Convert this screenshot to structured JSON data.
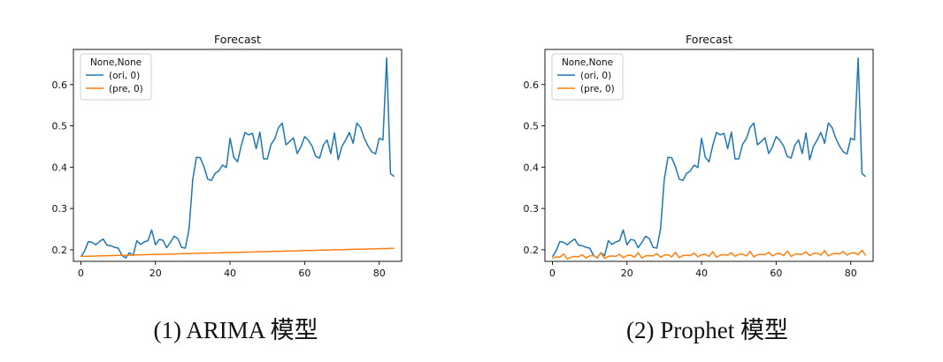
{
  "chart_data": [
    {
      "type": "line",
      "title": "Forecast",
      "xlabel": "",
      "ylabel": "",
      "xlim": [
        -2,
        86
      ],
      "ylim": [
        0.172,
        0.685
      ],
      "xticks": [
        0,
        20,
        40,
        60,
        80
      ],
      "yticks": [
        0.2,
        0.3,
        0.4,
        0.5,
        0.6
      ],
      "grid": false,
      "legend": {
        "title": "None,None",
        "placement": "top-left"
      },
      "series": [
        {
          "name": "(ori, 0)",
          "color": "#1f77b4",
          "values": [
            0.183,
            0.197,
            0.22,
            0.218,
            0.212,
            0.22,
            0.226,
            0.211,
            0.21,
            0.206,
            0.204,
            0.187,
            0.18,
            0.193,
            0.186,
            0.222,
            0.213,
            0.219,
            0.222,
            0.248,
            0.212,
            0.225,
            0.223,
            0.205,
            0.218,
            0.233,
            0.227,
            0.206,
            0.204,
            0.25,
            0.37,
            0.424,
            0.423,
            0.401,
            0.371,
            0.368,
            0.385,
            0.391,
            0.405,
            0.399,
            0.47,
            0.424,
            0.413,
            0.452,
            0.484,
            0.478,
            0.482,
            0.445,
            0.485,
            0.42,
            0.42,
            0.455,
            0.469,
            0.496,
            0.507,
            0.454,
            0.462,
            0.471,
            0.433,
            0.449,
            0.474,
            0.465,
            0.451,
            0.426,
            0.422,
            0.453,
            0.466,
            0.433,
            0.483,
            0.418,
            0.45,
            0.466,
            0.484,
            0.458,
            0.507,
            0.496,
            0.47,
            0.451,
            0.437,
            0.432,
            0.47,
            0.466,
            0.664,
            0.385,
            0.377
          ]
        },
        {
          "name": "(pre, 0)",
          "color": "#ff7f0e",
          "values": [
            0.184,
            0.1842,
            0.1845,
            0.1847,
            0.1849,
            0.1852,
            0.1854,
            0.1856,
            0.1859,
            0.1861,
            0.1863,
            0.1866,
            0.1868,
            0.187,
            0.1873,
            0.1875,
            0.1877,
            0.188,
            0.1882,
            0.1884,
            0.1887,
            0.1889,
            0.1891,
            0.1894,
            0.1896,
            0.1898,
            0.1901,
            0.1903,
            0.1905,
            0.1908,
            0.191,
            0.1912,
            0.1915,
            0.1917,
            0.1919,
            0.1922,
            0.1924,
            0.1926,
            0.1929,
            0.1931,
            0.1933,
            0.1936,
            0.1938,
            0.194,
            0.1943,
            0.1945,
            0.1947,
            0.195,
            0.1952,
            0.1954,
            0.1957,
            0.1959,
            0.1961,
            0.1964,
            0.1966,
            0.1968,
            0.1971,
            0.1973,
            0.1975,
            0.1978,
            0.198,
            0.1982,
            0.1985,
            0.1987,
            0.1989,
            0.1992,
            0.1994,
            0.1996,
            0.1999,
            0.2001,
            0.2003,
            0.2006,
            0.2008,
            0.201,
            0.2013,
            0.2015,
            0.2017,
            0.202,
            0.2022,
            0.2024,
            0.2027,
            0.2029,
            0.2031,
            0.2034,
            0.2036
          ]
        }
      ]
    },
    {
      "type": "line",
      "title": "Forecast",
      "xlabel": "",
      "ylabel": "",
      "xlim": [
        -2,
        86
      ],
      "ylim": [
        0.172,
        0.685
      ],
      "xticks": [
        0,
        20,
        40,
        60,
        80
      ],
      "yticks": [
        0.2,
        0.3,
        0.4,
        0.5,
        0.6
      ],
      "grid": false,
      "legend": {
        "title": "None,None",
        "placement": "top-left"
      },
      "series": [
        {
          "name": "(ori, 0)",
          "color": "#1f77b4",
          "values": [
            0.183,
            0.197,
            0.22,
            0.218,
            0.212,
            0.22,
            0.226,
            0.211,
            0.21,
            0.206,
            0.204,
            0.187,
            0.18,
            0.193,
            0.186,
            0.222,
            0.213,
            0.219,
            0.222,
            0.248,
            0.212,
            0.225,
            0.223,
            0.205,
            0.218,
            0.233,
            0.227,
            0.206,
            0.204,
            0.25,
            0.37,
            0.424,
            0.423,
            0.401,
            0.371,
            0.368,
            0.385,
            0.391,
            0.405,
            0.399,
            0.47,
            0.424,
            0.413,
            0.452,
            0.484,
            0.478,
            0.482,
            0.445,
            0.485,
            0.42,
            0.42,
            0.455,
            0.469,
            0.496,
            0.507,
            0.454,
            0.462,
            0.471,
            0.433,
            0.449,
            0.474,
            0.465,
            0.451,
            0.426,
            0.422,
            0.453,
            0.466,
            0.433,
            0.483,
            0.418,
            0.45,
            0.466,
            0.484,
            0.458,
            0.507,
            0.496,
            0.47,
            0.451,
            0.437,
            0.432,
            0.47,
            0.466,
            0.664,
            0.385,
            0.377
          ]
        },
        {
          "name": "(pre, 0)",
          "color": "#ff7f0e",
          "values": [
            0.179,
            0.183,
            0.182,
            0.19,
            0.178,
            0.182,
            0.184,
            0.183,
            0.188,
            0.18,
            0.185,
            0.186,
            0.181,
            0.192,
            0.179,
            0.184,
            0.185,
            0.184,
            0.189,
            0.181,
            0.186,
            0.187,
            0.182,
            0.193,
            0.18,
            0.185,
            0.186,
            0.185,
            0.191,
            0.182,
            0.187,
            0.188,
            0.183,
            0.194,
            0.181,
            0.186,
            0.187,
            0.186,
            0.192,
            0.183,
            0.188,
            0.189,
            0.184,
            0.195,
            0.182,
            0.187,
            0.188,
            0.187,
            0.193,
            0.184,
            0.189,
            0.19,
            0.185,
            0.196,
            0.183,
            0.188,
            0.189,
            0.188,
            0.194,
            0.185,
            0.19,
            0.191,
            0.186,
            0.197,
            0.184,
            0.189,
            0.19,
            0.189,
            0.195,
            0.186,
            0.191,
            0.192,
            0.187,
            0.198,
            0.185,
            0.19,
            0.191,
            0.19,
            0.196,
            0.187,
            0.192,
            0.193,
            0.188,
            0.199,
            0.186
          ]
        }
      ]
    }
  ],
  "captions": [
    "(1) ARIMA 模型",
    "(2) Prophet 模型"
  ]
}
